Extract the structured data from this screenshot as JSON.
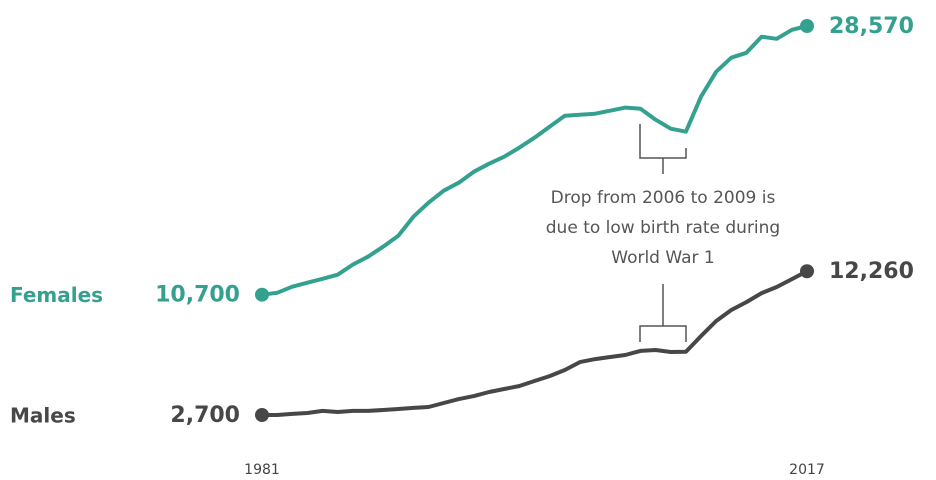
{
  "chart_data": {
    "type": "line",
    "x": [
      1981,
      1982,
      1983,
      1984,
      1985,
      1986,
      1987,
      1988,
      1989,
      1990,
      1991,
      1992,
      1993,
      1994,
      1995,
      1996,
      1997,
      1998,
      1999,
      2000,
      2001,
      2002,
      2003,
      2004,
      2005,
      2006,
      2007,
      2008,
      2009,
      2010,
      2011,
      2012,
      2013,
      2014,
      2015,
      2016,
      2017
    ],
    "xlim": [
      1981,
      2017
    ],
    "xticks": [
      1981,
      2017
    ],
    "series": [
      {
        "name": "Females",
        "color": "#34a190",
        "values": [
          10700,
          10830,
          11230,
          11500,
          11760,
          12030,
          12700,
          13230,
          13890,
          14620,
          15890,
          16820,
          17620,
          18150,
          18880,
          19410,
          19880,
          20480,
          21140,
          21870,
          22600,
          22670,
          22740,
          22940,
          23140,
          23070,
          22340,
          21740,
          21540,
          23870,
          25530,
          26460,
          26790,
          27860,
          27720,
          28320,
          28570
        ],
        "value_labels": [
          "10,700",
          null,
          null,
          null,
          null,
          null,
          null,
          null,
          null,
          null,
          null,
          null,
          null,
          null,
          null,
          null,
          null,
          null,
          null,
          null,
          null,
          null,
          null,
          null,
          null,
          null,
          null,
          null,
          null,
          null,
          null,
          null,
          null,
          null,
          null,
          null,
          "28,570"
        ]
      },
      {
        "name": "Males",
        "color": "#474747",
        "values": [
          2700,
          2700,
          2770,
          2830,
          2970,
          2900,
          2970,
          2970,
          3030,
          3100,
          3170,
          3230,
          3500,
          3760,
          3960,
          4230,
          4430,
          4630,
          4960,
          5290,
          5690,
          6220,
          6420,
          6560,
          6690,
          6960,
          7020,
          6890,
          6900,
          7950,
          8950,
          9680,
          10210,
          10810,
          11210,
          11740,
          12260
        ],
        "value_labels": [
          "2,700",
          null,
          null,
          null,
          null,
          null,
          null,
          null,
          null,
          null,
          null,
          null,
          null,
          null,
          null,
          null,
          null,
          null,
          null,
          null,
          null,
          null,
          null,
          null,
          null,
          null,
          null,
          null,
          null,
          null,
          null,
          null,
          null,
          null,
          null,
          null,
          "12,260"
        ]
      }
    ],
    "annotation": [
      "Drop from 2006 to 2009 is",
      "due to low birth rate during",
      "World War 1"
    ]
  }
}
